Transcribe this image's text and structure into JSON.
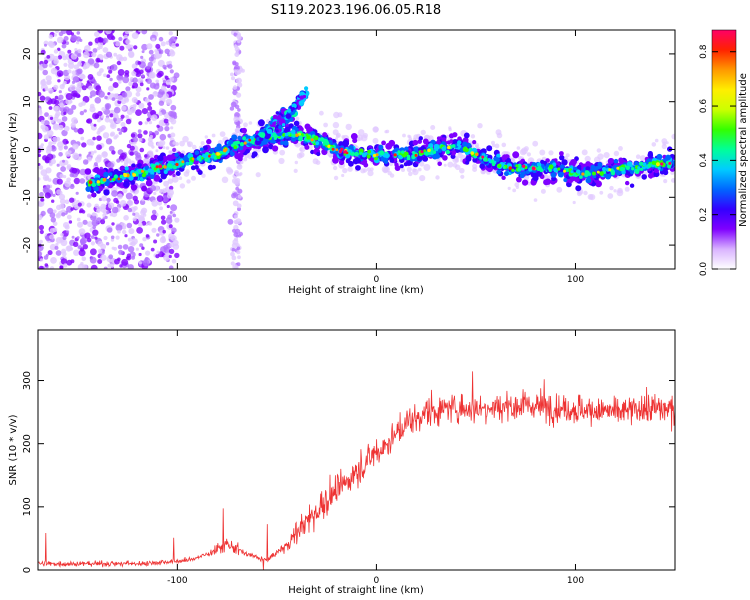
{
  "chart_data": [
    {
      "type": "heatmap",
      "title": "S119.2023.196.06.05.R18",
      "xlabel": "Height of straight line (km)",
      "ylabel": "Frequency (Hz)",
      "xlim": [
        -170,
        150
      ],
      "ylim": [
        -25,
        25
      ],
      "x_ticks": [
        -100,
        0,
        100
      ],
      "y_ticks": [
        -20,
        -10,
        0,
        10,
        20
      ],
      "colorbar": {
        "label": "Normalized spectral amplitude",
        "range": [
          0,
          0.88
        ],
        "ticks": [
          0.0,
          0.2,
          0.4,
          0.6,
          0.8
        ],
        "colors": [
          "#ffffff",
          "#d9b3ff",
          "#7f00ff",
          "#3300ff",
          "#0066ff",
          "#00ccff",
          "#00ff99",
          "#33ff00",
          "#ccff00",
          "#ffee00",
          "#ff9900",
          "#ff2200",
          "#ff0066"
        ]
      },
      "ridge": {
        "x": [
          -140,
          -130,
          -120,
          -110,
          -100,
          -90,
          -80,
          -70,
          -60,
          -50,
          -40,
          -30,
          -20,
          -10,
          0,
          10,
          20,
          30,
          40,
          50,
          60,
          70,
          80,
          90,
          100,
          110,
          120,
          130,
          140,
          150
        ],
        "y": [
          -7,
          -6,
          -5,
          -4,
          -3,
          -2,
          -1,
          1,
          2,
          3,
          3,
          2,
          0,
          -1,
          -1,
          -1,
          -1,
          0,
          1,
          -1,
          -3,
          -4,
          -4,
          -4,
          -5,
          -5,
          -4,
          -4,
          -3,
          -3
        ]
      },
      "branches": [
        {
          "x": [
            -60,
            -45
          ],
          "y": [
            2,
            8
          ]
        },
        {
          "x": [
            -50,
            -35
          ],
          "y": [
            4,
            12
          ]
        }
      ]
    },
    {
      "type": "line",
      "title": "",
      "xlabel": "Height of straight line (km)",
      "ylabel": "SNR (10 * v/v)",
      "xlim": [
        -170,
        150
      ],
      "ylim": [
        0,
        380
      ],
      "x_ticks": [
        -100,
        0,
        100
      ],
      "y_ticks": [
        0,
        100,
        200,
        300
      ],
      "color": "#ee3333",
      "envelope": {
        "x": [
          -170,
          -120,
          -95,
          -85,
          -75,
          -65,
          -55,
          -45,
          -35,
          -25,
          -15,
          -5,
          5,
          15,
          25,
          35,
          45,
          60,
          80,
          100,
          120,
          140,
          150
        ],
        "y": [
          10,
          10,
          15,
          25,
          40,
          25,
          15,
          40,
          80,
          110,
          140,
          170,
          200,
          230,
          250,
          255,
          255,
          260,
          260,
          255,
          250,
          255,
          255
        ]
      }
    }
  ]
}
